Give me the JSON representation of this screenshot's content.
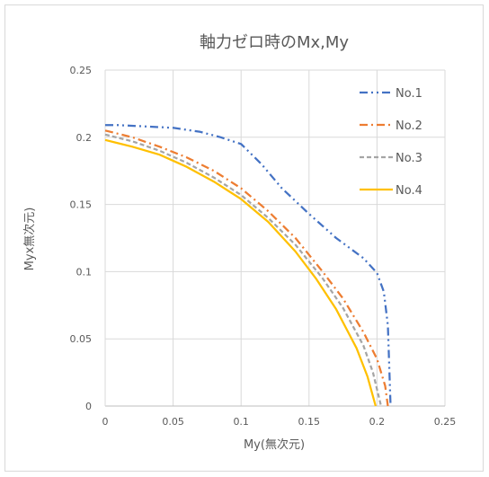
{
  "chart_data": {
    "type": "line",
    "title": "軸力ゼロ時のMx,My",
    "xlabel": "My(無次元)",
    "ylabel": "Myx無次元)",
    "xlim": [
      0,
      0.25
    ],
    "ylim": [
      0,
      0.25
    ],
    "xticks": [
      0,
      0.05,
      0.1,
      0.15,
      0.2,
      0.25
    ],
    "yticks": [
      0,
      0.05,
      0.1,
      0.15,
      0.2,
      0.25
    ],
    "xtick_labels": [
      "0",
      "0.05",
      "0.1",
      "0.15",
      "0.2",
      "0.25"
    ],
    "ytick_labels": [
      "0",
      "0.05",
      "0.1",
      "0.15",
      "0.2",
      "0.25"
    ],
    "grid": true,
    "legend_position": "top-right",
    "series": [
      {
        "name": "No.1",
        "color": "#4472C4",
        "dash": "dash-dot-dot",
        "x": [
          0,
          0.01,
          0.03,
          0.05,
          0.07,
          0.085,
          0.1,
          0.115,
          0.13,
          0.15,
          0.17,
          0.19,
          0.2,
          0.205,
          0.208,
          0.209,
          0.21
        ],
        "y": [
          0.209,
          0.209,
          0.208,
          0.207,
          0.204,
          0.2,
          0.195,
          0.18,
          0.162,
          0.143,
          0.125,
          0.11,
          0.099,
          0.085,
          0.06,
          0.03,
          0
        ]
      },
      {
        "name": "No.2",
        "color": "#ED7D31",
        "dash": "dash-dot",
        "x": [
          0,
          0.02,
          0.04,
          0.06,
          0.08,
          0.1,
          0.12,
          0.14,
          0.16,
          0.175,
          0.19,
          0.2,
          0.206,
          0.208
        ],
        "y": [
          0.205,
          0.2,
          0.193,
          0.185,
          0.175,
          0.162,
          0.145,
          0.125,
          0.1,
          0.08,
          0.055,
          0.035,
          0.015,
          0
        ]
      },
      {
        "name": "No.3",
        "color": "#A5A5A5",
        "dash": "dash",
        "x": [
          0,
          0.02,
          0.04,
          0.06,
          0.08,
          0.1,
          0.12,
          0.14,
          0.16,
          0.175,
          0.19,
          0.197,
          0.203
        ],
        "y": [
          0.202,
          0.197,
          0.19,
          0.181,
          0.17,
          0.157,
          0.14,
          0.12,
          0.095,
          0.073,
          0.045,
          0.025,
          0
        ]
      },
      {
        "name": "No.4",
        "color": "#FFC000",
        "dash": "solid",
        "x": [
          0,
          0.02,
          0.04,
          0.06,
          0.08,
          0.1,
          0.12,
          0.14,
          0.155,
          0.17,
          0.185,
          0.193,
          0.199
        ],
        "y": [
          0.198,
          0.193,
          0.187,
          0.178,
          0.167,
          0.154,
          0.137,
          0.115,
          0.095,
          0.072,
          0.043,
          0.022,
          0
        ]
      }
    ]
  }
}
